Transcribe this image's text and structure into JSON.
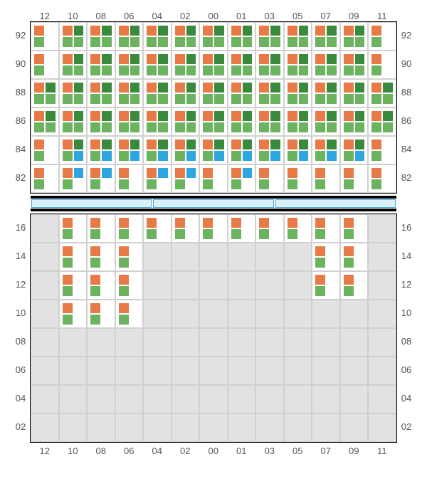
{
  "layout": {
    "col_labels": [
      "12",
      "10",
      "08",
      "06",
      "04",
      "02",
      "00",
      "01",
      "03",
      "05",
      "07",
      "09",
      "11"
    ],
    "top_row_labels": [
      "92",
      "90",
      "88",
      "86",
      "84",
      "82"
    ],
    "bottom_row_labels": [
      "16",
      "14",
      "12",
      "10",
      "08",
      "06",
      "04",
      "02"
    ],
    "divider_segments": 3
  },
  "colors": {
    "orange": "#e77a47",
    "green": "#6bb35e",
    "dgreen": "#3a8a3e",
    "blue": "#2ea7e0",
    "cell_white": "#ffffff",
    "cell_gray": "#e2e2e2",
    "divider_fill": "#d9f1fb",
    "divider_border": "#4aa8d8",
    "frame": "#000000",
    "gridline": "#d0d0d0",
    "label_color": "#555555",
    "label_fontsize": 13
  },
  "top_cells": [
    [
      [
        "o",
        "",
        "g",
        ""
      ],
      [
        "o",
        "dg",
        "g",
        "g"
      ],
      [
        "o",
        "dg",
        "g",
        "g"
      ],
      [
        "o",
        "dg",
        "g",
        "g"
      ],
      [
        "o",
        "dg",
        "g",
        "g"
      ],
      [
        "o",
        "dg",
        "g",
        "g"
      ],
      [
        "o",
        "dg",
        "g",
        "g"
      ],
      [
        "o",
        "dg",
        "g",
        "g"
      ],
      [
        "o",
        "dg",
        "g",
        "g"
      ],
      [
        "o",
        "dg",
        "g",
        "g"
      ],
      [
        "o",
        "dg",
        "g",
        "g"
      ],
      [
        "o",
        "dg",
        "g",
        "g"
      ],
      [
        "o",
        "",
        "g",
        ""
      ]
    ],
    [
      [
        "o",
        "",
        "g",
        ""
      ],
      [
        "o",
        "dg",
        "g",
        "g"
      ],
      [
        "o",
        "dg",
        "g",
        "g"
      ],
      [
        "o",
        "dg",
        "g",
        "g"
      ],
      [
        "o",
        "dg",
        "g",
        "g"
      ],
      [
        "o",
        "dg",
        "g",
        "g"
      ],
      [
        "o",
        "dg",
        "g",
        "g"
      ],
      [
        "o",
        "dg",
        "g",
        "g"
      ],
      [
        "o",
        "dg",
        "g",
        "g"
      ],
      [
        "o",
        "dg",
        "g",
        "g"
      ],
      [
        "o",
        "dg",
        "g",
        "g"
      ],
      [
        "o",
        "dg",
        "g",
        "g"
      ],
      [
        "o",
        "",
        "g",
        ""
      ]
    ],
    [
      [
        "o",
        "dg",
        "g",
        "g"
      ],
      [
        "o",
        "dg",
        "g",
        "g"
      ],
      [
        "o",
        "dg",
        "g",
        "g"
      ],
      [
        "o",
        "dg",
        "g",
        "g"
      ],
      [
        "o",
        "dg",
        "g",
        "g"
      ],
      [
        "o",
        "dg",
        "g",
        "g"
      ],
      [
        "o",
        "dg",
        "g",
        "g"
      ],
      [
        "o",
        "dg",
        "g",
        "g"
      ],
      [
        "o",
        "dg",
        "g",
        "g"
      ],
      [
        "o",
        "dg",
        "g",
        "g"
      ],
      [
        "o",
        "dg",
        "g",
        "g"
      ],
      [
        "o",
        "dg",
        "g",
        "g"
      ],
      [
        "o",
        "dg",
        "g",
        "g"
      ]
    ],
    [
      [
        "o",
        "dg",
        "g",
        "g"
      ],
      [
        "o",
        "dg",
        "g",
        "g"
      ],
      [
        "o",
        "dg",
        "g",
        "g"
      ],
      [
        "o",
        "dg",
        "g",
        "g"
      ],
      [
        "o",
        "dg",
        "g",
        "g"
      ],
      [
        "o",
        "dg",
        "g",
        "g"
      ],
      [
        "o",
        "dg",
        "g",
        "g"
      ],
      [
        "o",
        "dg",
        "g",
        "g"
      ],
      [
        "o",
        "dg",
        "g",
        "g"
      ],
      [
        "o",
        "dg",
        "g",
        "g"
      ],
      [
        "o",
        "dg",
        "g",
        "g"
      ],
      [
        "o",
        "dg",
        "g",
        "g"
      ],
      [
        "o",
        "dg",
        "g",
        "g"
      ]
    ],
    [
      [
        "o",
        "",
        "g",
        ""
      ],
      [
        "o",
        "dg",
        "g",
        "b"
      ],
      [
        "o",
        "dg",
        "g",
        "b"
      ],
      [
        "o",
        "dg",
        "g",
        "b"
      ],
      [
        "o",
        "dg",
        "g",
        "b"
      ],
      [
        "o",
        "dg",
        "g",
        "b"
      ],
      [
        "o",
        "dg",
        "g",
        "b"
      ],
      [
        "o",
        "dg",
        "g",
        "b"
      ],
      [
        "o",
        "dg",
        "g",
        "b"
      ],
      [
        "o",
        "dg",
        "g",
        "b"
      ],
      [
        "o",
        "dg",
        "g",
        "b"
      ],
      [
        "o",
        "dg",
        "g",
        "b"
      ],
      [
        "o",
        "",
        "g",
        ""
      ]
    ],
    [
      [
        "o",
        "",
        "g",
        ""
      ],
      [
        "o",
        "b",
        "g",
        ""
      ],
      [
        "o",
        "b",
        "g",
        ""
      ],
      [
        "o",
        "",
        "g",
        ""
      ],
      [
        "o",
        "b",
        "g",
        ""
      ],
      [
        "o",
        "b",
        "g",
        ""
      ],
      [
        "o",
        "",
        "g",
        ""
      ],
      [
        "o",
        "b",
        "g",
        ""
      ],
      [
        "o",
        "",
        "g",
        ""
      ],
      [
        "o",
        "",
        "g",
        ""
      ],
      [
        "o",
        "",
        "g",
        ""
      ],
      [
        "o",
        "",
        "g",
        ""
      ],
      [
        "o",
        "",
        "g",
        ""
      ]
    ]
  ],
  "bottom_cells": [
    [
      null,
      [
        "o",
        "",
        "g",
        ""
      ],
      [
        "o",
        "",
        "g",
        ""
      ],
      [
        "o",
        "",
        "g",
        ""
      ],
      [
        "o",
        "",
        "g",
        ""
      ],
      [
        "o",
        "",
        "g",
        ""
      ],
      [
        "o",
        "",
        "g",
        ""
      ],
      [
        "o",
        "",
        "g",
        ""
      ],
      [
        "o",
        "",
        "g",
        ""
      ],
      [
        "o",
        "",
        "g",
        ""
      ],
      [
        "o",
        "",
        "g",
        ""
      ],
      [
        "o",
        "",
        "g",
        ""
      ],
      null
    ],
    [
      null,
      [
        "o",
        "",
        "g",
        ""
      ],
      [
        "o",
        "",
        "g",
        ""
      ],
      [
        "o",
        "",
        "g",
        ""
      ],
      null,
      null,
      null,
      null,
      null,
      null,
      [
        "o",
        "",
        "g",
        ""
      ],
      [
        "o",
        "",
        "g",
        ""
      ],
      null
    ],
    [
      null,
      [
        "o",
        "",
        "g",
        ""
      ],
      [
        "o",
        "",
        "g",
        ""
      ],
      [
        "o",
        "",
        "g",
        ""
      ],
      null,
      null,
      null,
      null,
      null,
      null,
      [
        "o",
        "",
        "g",
        ""
      ],
      [
        "o",
        "",
        "g",
        ""
      ],
      null
    ],
    [
      null,
      [
        "o",
        "",
        "g",
        ""
      ],
      [
        "o",
        "",
        "g",
        ""
      ],
      [
        "o",
        "",
        "g",
        ""
      ],
      null,
      null,
      null,
      null,
      null,
      null,
      null,
      null,
      null
    ],
    [
      null,
      null,
      null,
      null,
      null,
      null,
      null,
      null,
      null,
      null,
      null,
      null,
      null
    ],
    [
      null,
      null,
      null,
      null,
      null,
      null,
      null,
      null,
      null,
      null,
      null,
      null,
      null
    ],
    [
      null,
      null,
      null,
      null,
      null,
      null,
      null,
      null,
      null,
      null,
      null,
      null,
      null
    ],
    [
      null,
      null,
      null,
      null,
      null,
      null,
      null,
      null,
      null,
      null,
      null,
      null,
      null
    ]
  ]
}
